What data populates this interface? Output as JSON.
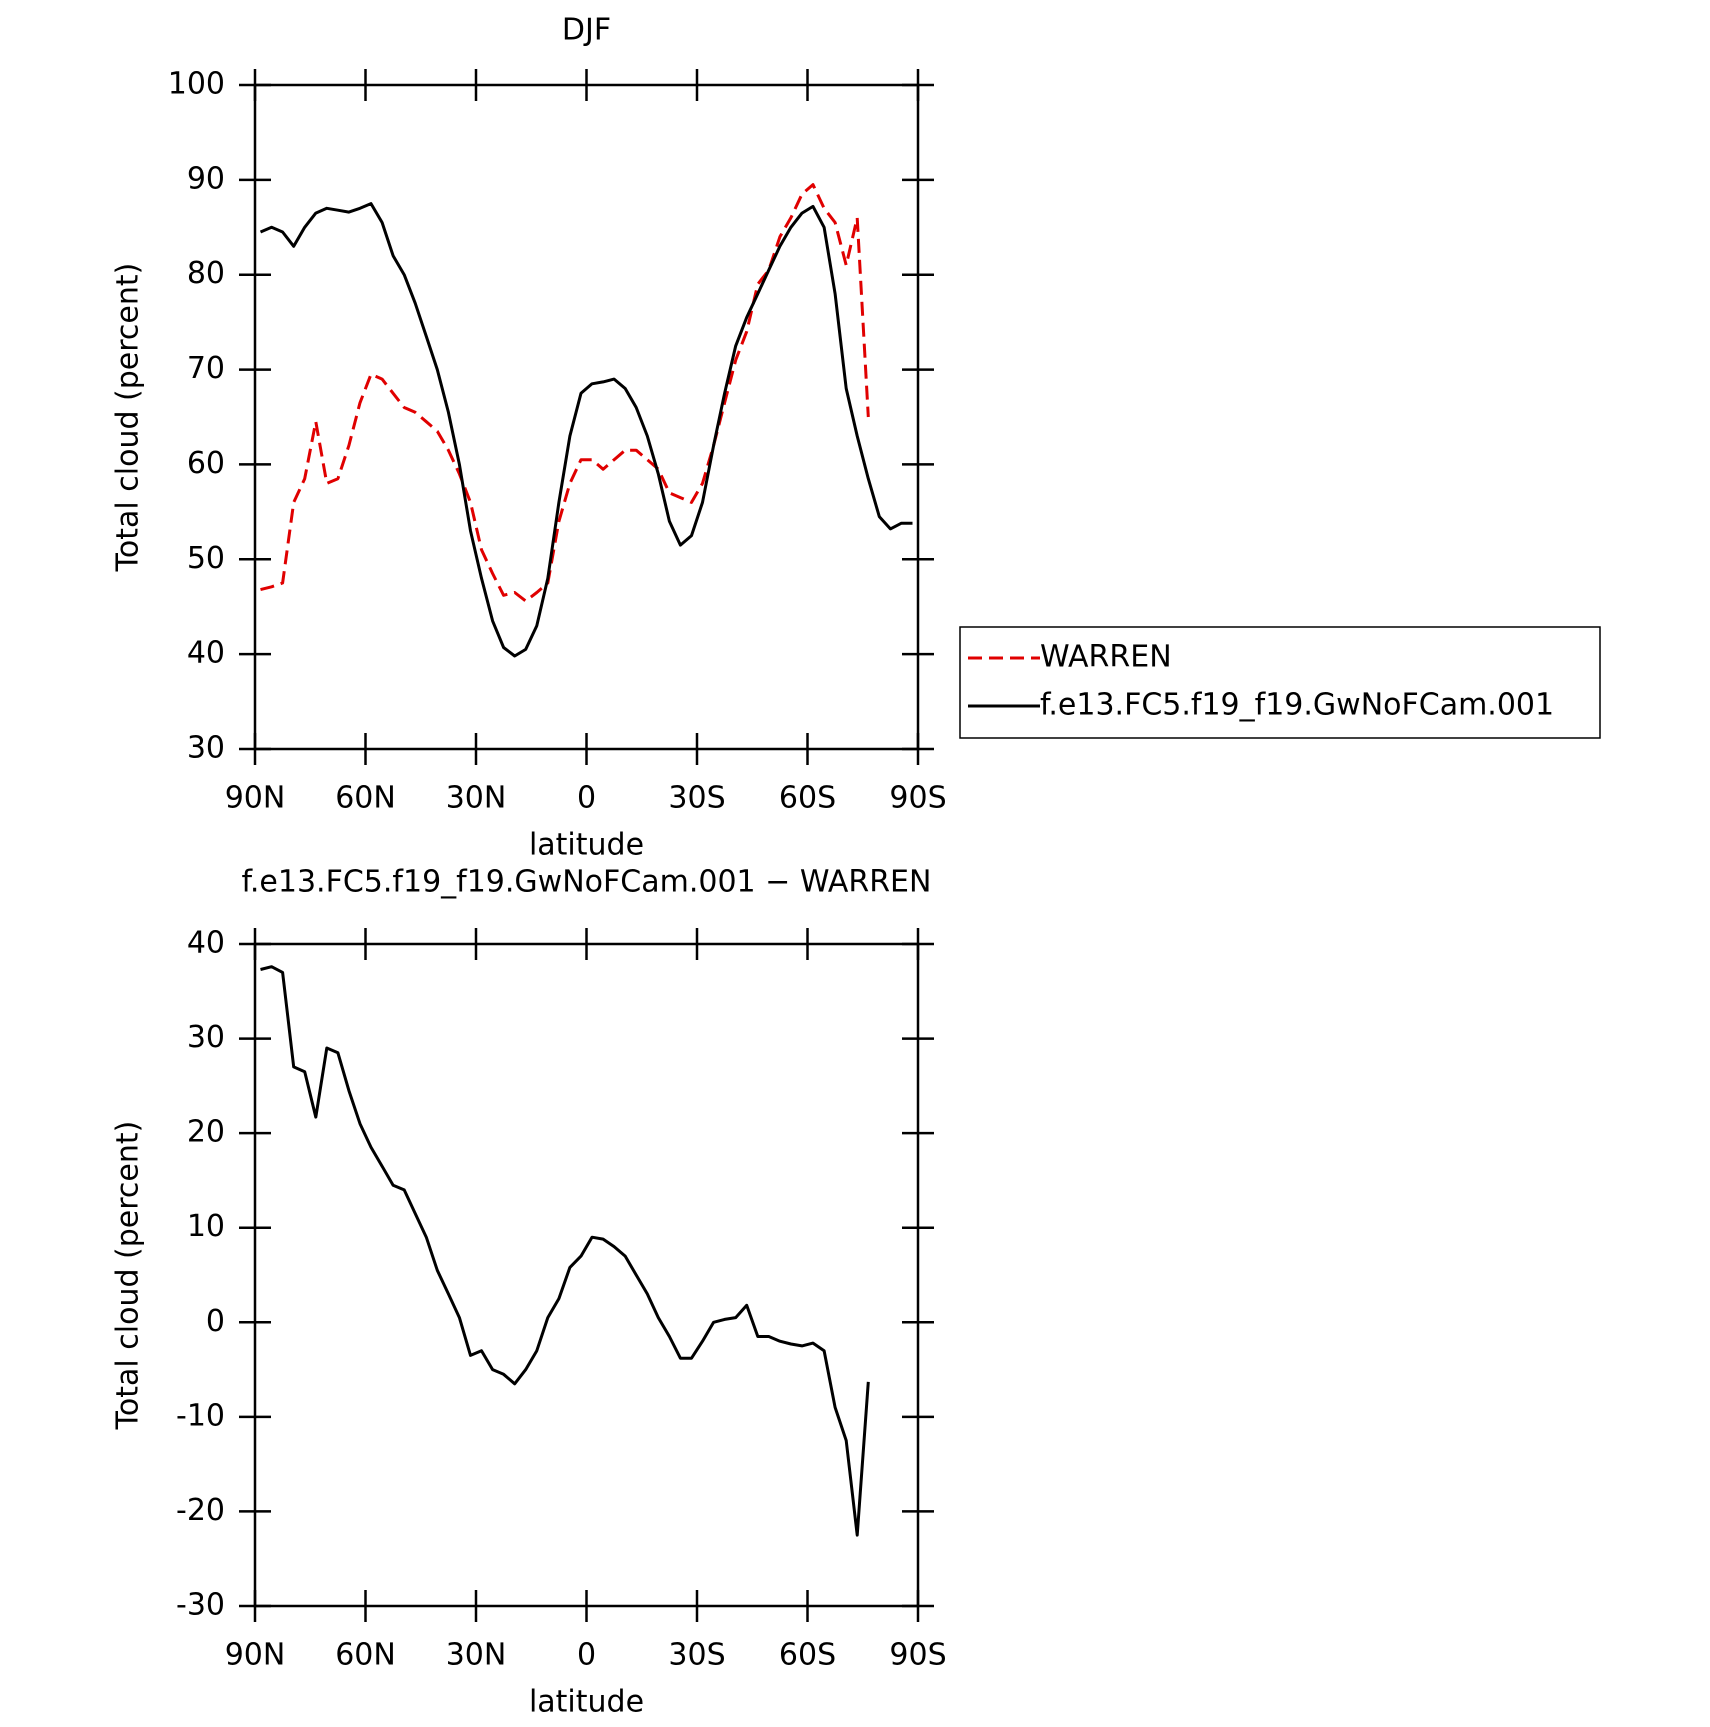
{
  "chart_data": [
    {
      "type": "line",
      "title": "DJF",
      "x_label": "latitude",
      "y_label": "Total cloud (percent)",
      "x": [
        88.5,
        85.5,
        82.5,
        79.5,
        76.5,
        73.5,
        70.5,
        67.5,
        64.5,
        61.5,
        58.5,
        55.5,
        52.5,
        49.5,
        46.5,
        43.5,
        40.5,
        37.5,
        34.5,
        31.5,
        28.5,
        25.5,
        22.5,
        19.5,
        16.5,
        13.5,
        10.5,
        7.5,
        4.5,
        1.5,
        -1.5,
        -4.5,
        -7.5,
        -10.5,
        -13.5,
        -16.5,
        -19.5,
        -22.5,
        -25.5,
        -28.5,
        -31.5,
        -34.5,
        -37.5,
        -40.5,
        -43.5,
        -46.5,
        -49.5,
        -52.5,
        -55.5,
        -58.5,
        -61.5,
        -64.5,
        -67.5,
        -70.5,
        -73.5,
        -76.5,
        -79.5,
        -82.5,
        -85.5,
        -88.5
      ],
      "series": [
        {
          "name": "WARREN",
          "color": "#e00000",
          "linestyle": "dashed",
          "values": [
            46.8,
            47.1,
            47.5,
            56,
            58.5,
            64.5,
            58,
            58.5,
            62,
            66.5,
            69.5,
            69,
            67.5,
            66,
            65.5,
            64.5,
            63.5,
            61.5,
            59,
            56,
            51,
            48.5,
            46.2,
            46.5,
            45.6,
            46.5,
            47.5,
            54,
            58,
            60.5,
            60.5,
            59.5,
            60.5,
            61.5,
            61.5,
            60.5,
            59.5,
            57,
            56.5,
            56,
            58,
            62,
            66.5,
            71,
            74,
            79,
            80.5,
            84,
            86,
            88.5,
            89.5,
            87,
            85.5,
            81,
            86,
            65,
            null,
            null,
            null,
            null
          ]
        },
        {
          "name": "f.e13.FC5.f19_f19.GwNoFCam.001",
          "color": "#000000",
          "linestyle": "solid",
          "values": [
            84.5,
            85,
            84.5,
            83,
            85,
            86.5,
            87,
            86.8,
            86.6,
            87,
            87.5,
            85.5,
            82,
            80,
            77,
            73.5,
            70,
            65.5,
            60,
            53,
            48,
            43.5,
            40.7,
            39.8,
            40.5,
            43,
            48,
            56,
            63,
            67.5,
            68.5,
            68.7,
            69,
            68,
            66,
            63,
            59,
            54,
            51.5,
            52.5,
            56,
            62,
            67.5,
            72.5,
            75.5,
            78,
            80.5,
            83,
            85,
            86.5,
            87.2,
            85,
            78,
            68,
            63,
            58.5,
            54.5,
            53.2,
            53.8,
            53.8
          ]
        }
      ],
      "xlim": [
        90,
        -90
      ],
      "xticks": [
        {
          "value": 90,
          "label": "90N"
        },
        {
          "value": 60,
          "label": "60N"
        },
        {
          "value": 30,
          "label": "30N"
        },
        0,
        {
          "value": -30,
          "label": "30S"
        },
        {
          "value": -60,
          "label": "60S"
        },
        {
          "value": -90,
          "label": "90S"
        }
      ],
      "ylim": [
        30,
        100
      ],
      "yticks": [
        30,
        40,
        50,
        60,
        70,
        80,
        90,
        100
      ],
      "grid": false,
      "legend": "right"
    },
    {
      "type": "line",
      "title": "f.e13.FC5.f19_f19.GwNoFCam.001 − WARREN",
      "x_label": "latitude",
      "y_label": "Total cloud (percent)",
      "x": [
        88.5,
        85.5,
        82.5,
        79.5,
        76.5,
        73.5,
        70.5,
        67.5,
        64.5,
        61.5,
        58.5,
        55.5,
        52.5,
        49.5,
        46.5,
        43.5,
        40.5,
        37.5,
        34.5,
        31.5,
        28.5,
        25.5,
        22.5,
        19.5,
        16.5,
        13.5,
        10.5,
        7.5,
        4.5,
        1.5,
        -1.5,
        -4.5,
        -7.5,
        -10.5,
        -13.5,
        -16.5,
        -19.5,
        -22.5,
        -25.5,
        -28.5,
        -31.5,
        -34.5,
        -37.5,
        -40.5,
        -43.5,
        -46.5,
        -49.5,
        -52.5,
        -55.5,
        -58.5,
        -61.5,
        -64.5,
        -67.5,
        -70.5,
        -73.5,
        -76.5,
        -79.5,
        -82.5,
        -85.5,
        -88.5
      ],
      "series": [
        {
          "color": "#000000",
          "linestyle": "solid",
          "values": [
            37.3,
            37.6,
            37,
            27,
            26.5,
            21.7,
            29,
            28.5,
            24.5,
            21,
            18.5,
            16.5,
            14.5,
            14,
            11.5,
            9,
            5.5,
            3,
            0.5,
            -3.5,
            -3,
            -5,
            -5.5,
            -6.5,
            -5,
            -3,
            0.5,
            2.5,
            5.8,
            7,
            9,
            8.8,
            8,
            7,
            5,
            3,
            0.5,
            -1.5,
            -3.8,
            -3.8,
            -2,
            0,
            0.3,
            0.5,
            1.8,
            -1.5,
            -1.5,
            -2,
            -2.3,
            -2.5,
            -2.2,
            -3,
            -9,
            -12.5,
            -22.5,
            -6.3,
            null,
            null,
            null,
            null
          ]
        }
      ],
      "xlim": [
        90,
        -90
      ],
      "xticks": [
        {
          "value": 90,
          "label": "90N"
        },
        {
          "value": 60,
          "label": "60N"
        },
        {
          "value": 30,
          "label": "30N"
        },
        0,
        {
          "value": -30,
          "label": "30S"
        },
        {
          "value": -60,
          "label": "60S"
        },
        {
          "value": -90,
          "label": "90S"
        }
      ],
      "ylim": [
        -30,
        40
      ],
      "yticks": [
        -30,
        -20,
        -10,
        0,
        10,
        20,
        30,
        40
      ],
      "grid": false
    }
  ]
}
